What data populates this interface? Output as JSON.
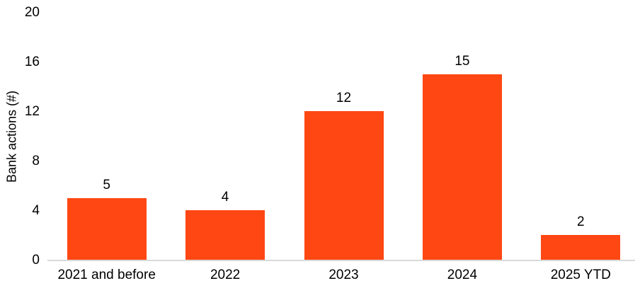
{
  "chart_data": {
    "type": "bar",
    "categories": [
      "2021 and before",
      "2022",
      "2023",
      "2024",
      "2025 YTD"
    ],
    "values": [
      5,
      4,
      12,
      15,
      2
    ],
    "title": "",
    "xlabel": "",
    "ylabel": "Bank actions (#)",
    "ylim": [
      0,
      20
    ],
    "yticks": [
      0,
      4,
      8,
      12,
      16,
      20
    ],
    "data_labels": [
      5,
      4,
      12,
      15,
      2
    ],
    "bar_color": "#FF4713",
    "axis_line_color": "#D9D9D9",
    "text_color": "#000000",
    "background_color": "#FFFFFF",
    "grid": "off",
    "legend": "none"
  }
}
